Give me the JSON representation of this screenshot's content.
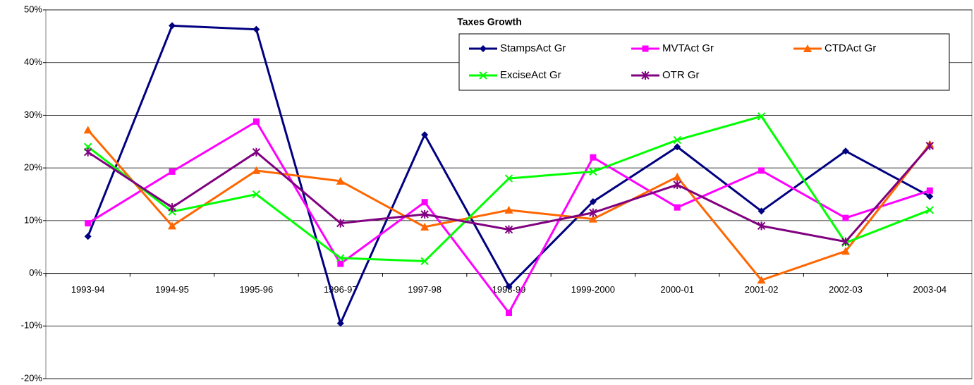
{
  "chart_data": {
    "type": "line",
    "title": "Taxes Growth",
    "categories": [
      "1993-94",
      "1994-95",
      "1995-96",
      "1996-97",
      "1997-98",
      "1998-99",
      "1999-2000",
      "2000-01",
      "2001-02",
      "2002-03",
      "2003-04"
    ],
    "series": [
      {
        "name": "StampsAct Gr",
        "color": "#000080",
        "marker": "diamond",
        "values": [
          7,
          47,
          46.3,
          -9.5,
          26.3,
          -2.5,
          13.6,
          24,
          11.8,
          23.2,
          14.6
        ]
      },
      {
        "name": "MVTAct Gr",
        "color": "#ff00ff",
        "marker": "square",
        "values": [
          9.5,
          19.3,
          28.8,
          1.8,
          13.5,
          -7.5,
          22,
          12.5,
          19.5,
          10.5,
          15.7
        ]
      },
      {
        "name": "CTDAct Gr",
        "color": "#ff6600",
        "marker": "triangle",
        "values": [
          27.2,
          9,
          19.5,
          17.5,
          8.8,
          12,
          10.3,
          18.3,
          -1.3,
          4.2,
          24.5
        ]
      },
      {
        "name": "ExciseAct Gr",
        "color": "#00ff00",
        "marker": "x",
        "values": [
          24,
          11.7,
          15,
          2.9,
          2.3,
          18,
          19.3,
          25.3,
          29.8,
          5.8,
          12
        ]
      },
      {
        "name": "OTR Gr",
        "color": "#800080",
        "marker": "star",
        "values": [
          23,
          12.5,
          23,
          9.5,
          11.2,
          8.3,
          11.5,
          16.8,
          9,
          6,
          24.2
        ]
      }
    ],
    "ylim": [
      -20,
      50
    ],
    "yticks": [
      {
        "value": -20,
        "label": "-20%"
      },
      {
        "value": -10,
        "label": "-10%"
      },
      {
        "value": 0,
        "label": "0%"
      },
      {
        "value": 10,
        "label": "10%"
      },
      {
        "value": 20,
        "label": "20%"
      },
      {
        "value": 30,
        "label": "30%"
      },
      {
        "value": 40,
        "label": "40%"
      },
      {
        "value": 50,
        "label": "50%"
      }
    ],
    "grid": true
  }
}
